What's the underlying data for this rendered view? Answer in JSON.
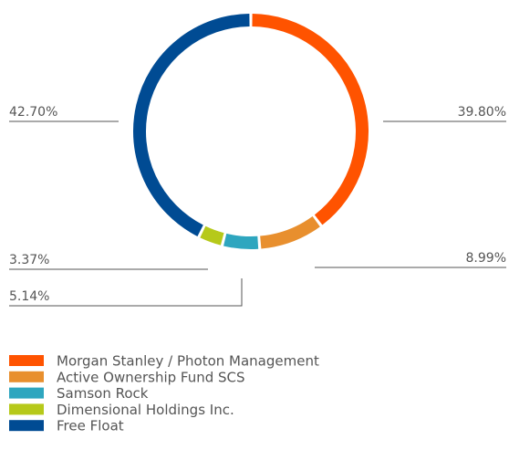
{
  "chart_data": {
    "type": "donut",
    "categories": [
      "Morgan Stanley / Photon Management",
      "Active Ownership Fund SCS",
      "Samson Rock",
      "Dimensional Holdings Inc.",
      "Free Float"
    ],
    "values": [
      39.8,
      8.99,
      5.14,
      3.37,
      42.7
    ],
    "value_labels": [
      "39.80%",
      "8.99%",
      "5.14%",
      "3.37%",
      "42.70%"
    ],
    "colors": [
      "#ff5300",
      "#e88f2e",
      "#2ea6bf",
      "#b6c91a",
      "#004b93"
    ],
    "legend": "bottom-left"
  }
}
